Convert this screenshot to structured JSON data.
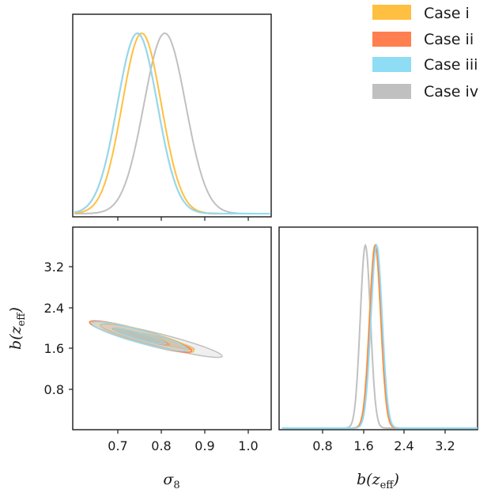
{
  "chart_data": {
    "type": "corner",
    "title": "",
    "parameters": [
      {
        "name": "sigma8",
        "label_base": "σ",
        "label_sub": "8"
      },
      {
        "name": "b_zeff",
        "label_base": "b(z",
        "label_sub": "eff",
        "label_tail": ")"
      }
    ],
    "ranges": {
      "sigma8": [
        0.6,
        1.05
      ],
      "b_zeff": [
        0.0,
        3.9
      ]
    },
    "ticks": {
      "sigma8": [
        "0.7",
        "0.8",
        "0.9",
        "1.0"
      ],
      "b_zeff": [
        "0.8",
        "1.6",
        "2.4",
        "3.2"
      ]
    },
    "legend": {
      "placement": "top-right",
      "entries": [
        {
          "label": "Case i",
          "color": "#ffbf40"
        },
        {
          "label": "Case ii",
          "color": "#ff7f50"
        },
        {
          "label": "Case iii",
          "color": "#8fdcf5"
        },
        {
          "label": "Case iv",
          "color": "#c0c0c0"
        }
      ]
    },
    "series": [
      {
        "name": "Case i",
        "color": "#ffbf40",
        "sigma8_marginal": {
          "mean": 0.755,
          "sd": 0.045
        },
        "b_marginal": {
          "mean": 1.83,
          "sd": 0.11
        },
        "contour": {
          "sigma8": [
            0.635,
            0.875
          ],
          "b_zeff": [
            2.12,
            1.55
          ]
        }
      },
      {
        "name": "Case ii",
        "color": "#ff7f50",
        "sigma8_marginal": {
          "mean": 0.745,
          "sd": 0.046
        },
        "b_marginal": {
          "mean": 1.84,
          "sd": 0.11
        },
        "contour": {
          "sigma8": [
            0.635,
            0.87
          ],
          "b_zeff": [
            2.12,
            1.55
          ]
        }
      },
      {
        "name": "Case iii",
        "color": "#8fdcf5",
        "sigma8_marginal": {
          "mean": 0.745,
          "sd": 0.046
        },
        "b_marginal": {
          "mean": 1.86,
          "sd": 0.11
        },
        "contour": {
          "sigma8": [
            0.64,
            0.86
          ],
          "b_zeff": [
            2.1,
            1.58
          ]
        }
      },
      {
        "name": "Case iv",
        "color": "#c0c0c0",
        "sigma8_marginal": {
          "mean": 0.808,
          "sd": 0.048
        },
        "b_marginal": {
          "mean": 1.64,
          "sd": 0.1
        },
        "contour": {
          "sigma8": [
            0.66,
            0.94
          ],
          "b_zeff": [
            2.06,
            1.45
          ]
        }
      }
    ]
  }
}
